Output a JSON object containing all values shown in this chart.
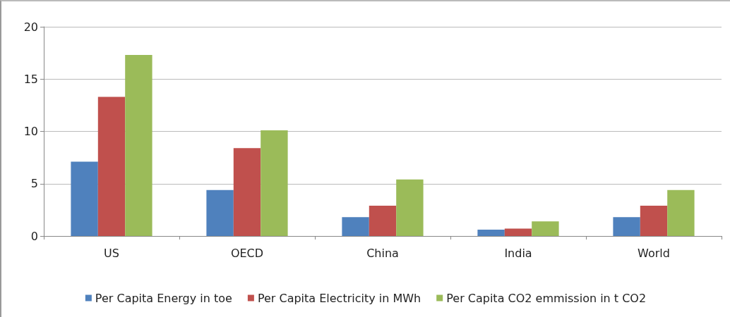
{
  "chart_data": {
    "type": "bar",
    "categories": [
      "US",
      "OECD",
      "China",
      "India",
      "World"
    ],
    "series": [
      {
        "name": "Per Capita Energy in toe",
        "color": "#4f81bd",
        "values": [
          7.1,
          4.4,
          1.8,
          0.6,
          1.8
        ]
      },
      {
        "name": "Per Capita Electricity in MWh",
        "color": "#c0504d",
        "values": [
          13.3,
          8.4,
          2.9,
          0.7,
          2.9
        ]
      },
      {
        "name": "Per Capita CO2 emmission in t CO2",
        "color": "#9bbb59",
        "values": [
          17.3,
          10.1,
          5.4,
          1.4,
          4.4
        ]
      }
    ],
    "ylim": [
      0,
      20
    ],
    "yticks": [
      0,
      5,
      10,
      15,
      20
    ],
    "grid": "y",
    "legend": "bottom"
  }
}
